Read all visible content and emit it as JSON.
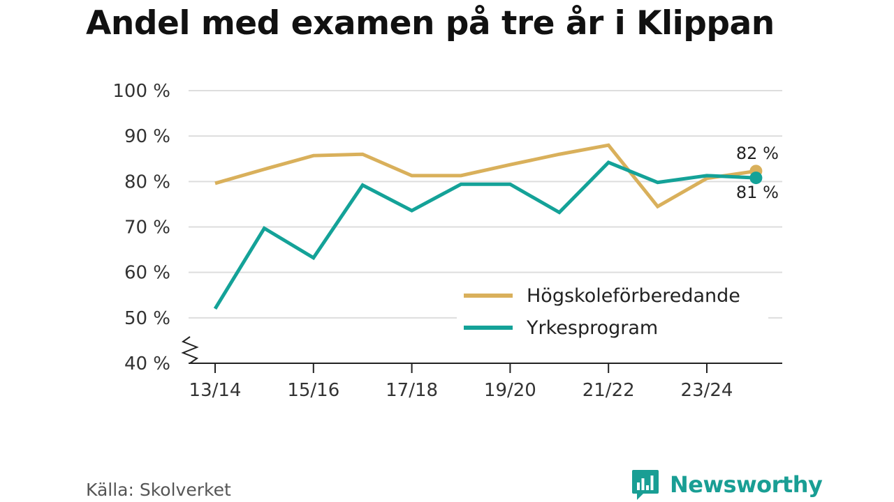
{
  "chart_data": {
    "type": "line",
    "title": "Andel med examen på tre år i Klippan",
    "x": [
      "13/14",
      "14/15",
      "15/16",
      "16/17",
      "17/18",
      "18/19",
      "19/20",
      "20/21",
      "21/22",
      "22/23",
      "23/24",
      "24/25"
    ],
    "xticks": [
      "13/14",
      "15/16",
      "17/18",
      "19/20",
      "21/22",
      "23/24"
    ],
    "yticks": [
      "40 %",
      "50 %",
      "60 %",
      "70 %",
      "80 %",
      "90 %",
      "100 %"
    ],
    "ylim": [
      40,
      100
    ],
    "grid": true,
    "legend": "bottom-right",
    "series": [
      {
        "name": "Högskoleförberedande",
        "color": "#d9b05b",
        "values": [
          79.6,
          82.7,
          85.7,
          86.0,
          81.3,
          81.3,
          83.7,
          86.0,
          88.0,
          74.5,
          80.7,
          82.3
        ],
        "end_label": "82 %"
      },
      {
        "name": "Yrkesprogram",
        "color": "#14a298",
        "values": [
          52.0,
          69.7,
          63.2,
          79.2,
          73.6,
          79.4,
          79.4,
          73.2,
          84.2,
          79.8,
          81.3,
          80.8
        ],
        "end_label": "81 %"
      }
    ]
  },
  "source": "Källa: Skolverket",
  "brand": "Newsworthy"
}
